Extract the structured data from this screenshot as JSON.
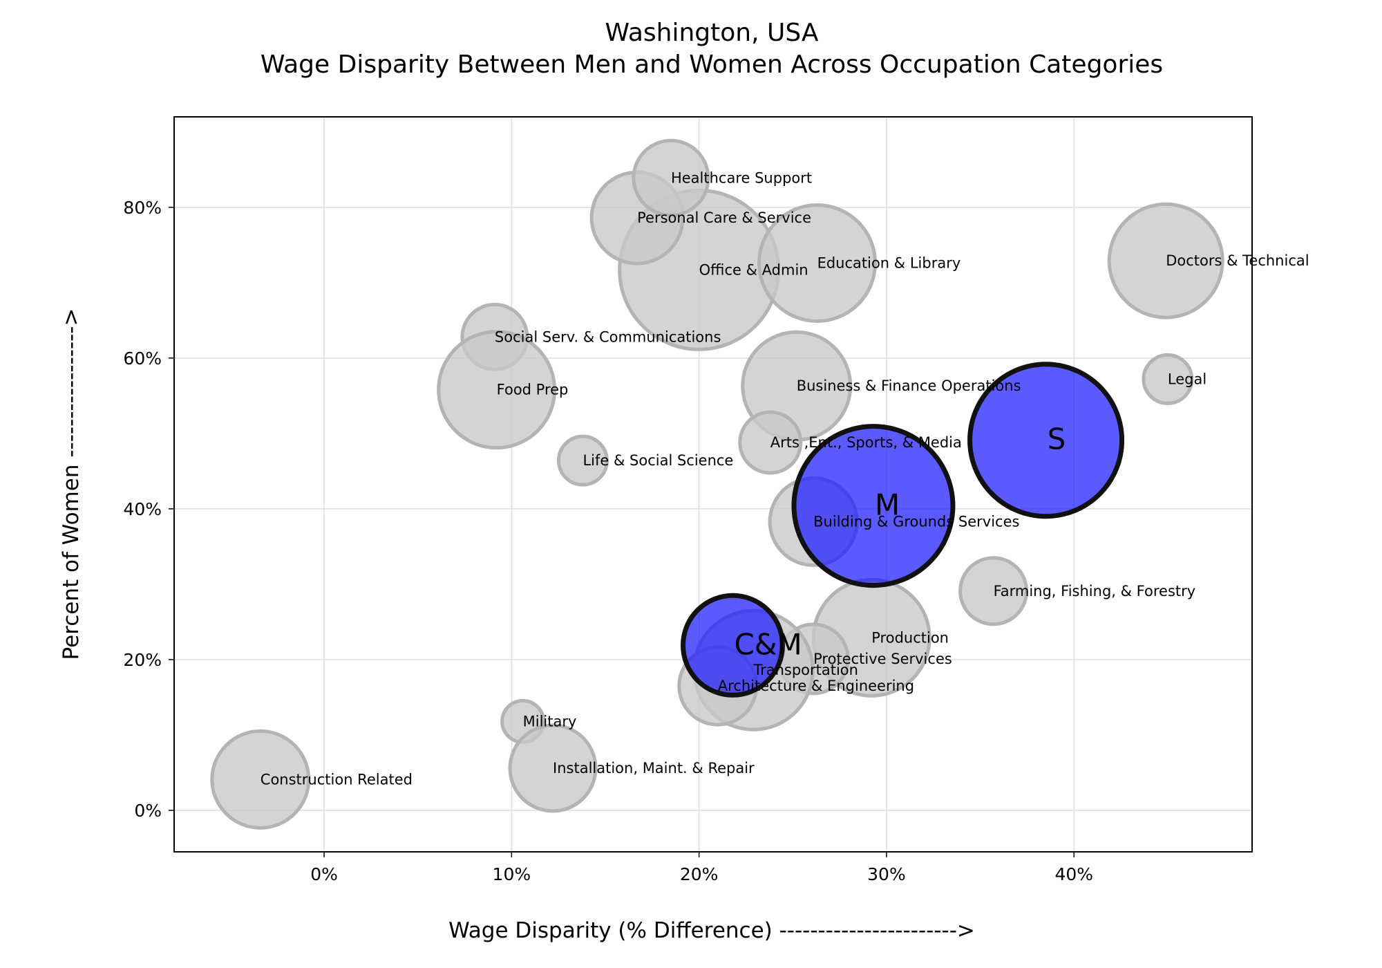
{
  "chart_data": {
    "type": "scatter",
    "title": "Washington, USA",
    "subtitle": "Wage Disparity Between Men and Women Across Occupation Categories",
    "xlabel": "Wage Disparity (% Difference) ----------------------->",
    "ylabel": "Percent of Women ----------------->",
    "xlim": [
      -8,
      49.5
    ],
    "ylim": [
      -5.5,
      92
    ],
    "xticks": [
      0,
      10,
      20,
      30,
      40
    ],
    "yticks": [
      0,
      20,
      40,
      60,
      80
    ],
    "x_tick_labels": [
      "0%",
      "10%",
      "20%",
      "30%",
      "40%"
    ],
    "y_tick_labels": [
      "0%",
      "20%",
      "40%",
      "60%",
      "80%"
    ],
    "grid": true,
    "point_color": "#c8c8c8",
    "point_edge_color": "#b4b4b4",
    "highlight_color": "#1a1aff",
    "highlight_edge_color": "#111111",
    "points": [
      {
        "label": "Office & Admin",
        "x": 20.0,
        "y": 71.7,
        "r": 115
      },
      {
        "label": "Personal Care & Service",
        "x": 16.7,
        "y": 78.6,
        "r": 66
      },
      {
        "label": "Healthcare Support",
        "x": 18.5,
        "y": 83.9,
        "r": 54
      },
      {
        "label": "Education & Library",
        "x": 26.3,
        "y": 72.6,
        "r": 84
      },
      {
        "label": "Doctors & Technical",
        "x": 44.9,
        "y": 72.9,
        "r": 82
      },
      {
        "label": "Social Serv. & Communications",
        "x": 9.1,
        "y": 62.8,
        "r": 47
      },
      {
        "label": "Food Prep",
        "x": 9.2,
        "y": 55.8,
        "r": 84
      },
      {
        "label": "Business & Finance Operations",
        "x": 25.2,
        "y": 56.3,
        "r": 78
      },
      {
        "label": "Legal",
        "x": 45.0,
        "y": 57.2,
        "r": 35
      },
      {
        "label": "Arts ,Ent., Sports, & Media",
        "x": 23.8,
        "y": 48.8,
        "r": 44
      },
      {
        "label": "Life & Social Science",
        "x": 13.8,
        "y": 46.4,
        "r": 35
      },
      {
        "label": "Building & Grounds Services",
        "x": 26.1,
        "y": 38.3,
        "r": 63
      },
      {
        "label": "Farming, Fishing, & Forestry",
        "x": 35.7,
        "y": 29.1,
        "r": 48
      },
      {
        "label": "Production",
        "x": 29.2,
        "y": 22.9,
        "r": 84
      },
      {
        "label": "Protective Services",
        "x": 26.1,
        "y": 20.1,
        "r": 50
      },
      {
        "label": "Transportation",
        "x": 22.9,
        "y": 18.6,
        "r": 86
      },
      {
        "label": "Architecture & Engineering",
        "x": 21.0,
        "y": 16.5,
        "r": 56
      },
      {
        "label": "Military",
        "x": 10.6,
        "y": 11.8,
        "r": 30
      },
      {
        "label": "Installation, Maint. & Repair",
        "x": 12.2,
        "y": 5.6,
        "r": 62
      },
      {
        "label": "Construction Related",
        "x": -3.4,
        "y": 4.1,
        "r": 70
      }
    ],
    "highlights": [
      {
        "label": "S",
        "x": 38.5,
        "y": 49.1,
        "r": 110
      },
      {
        "label": "M",
        "x": 29.3,
        "y": 40.4,
        "r": 115
      },
      {
        "label": "C&M",
        "x": 21.8,
        "y": 21.9,
        "r": 72
      }
    ]
  }
}
